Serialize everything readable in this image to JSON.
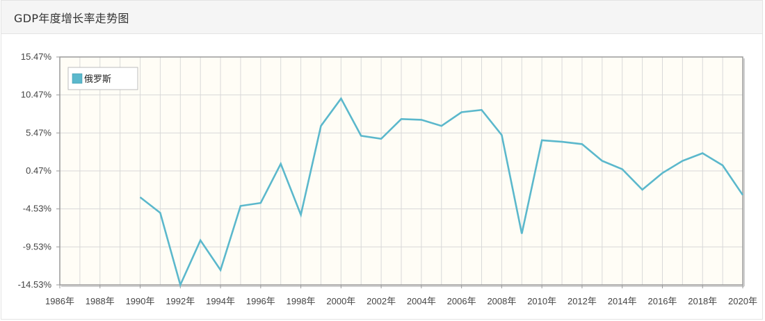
{
  "header": {
    "title": "GDP年度增长率走势图"
  },
  "colors": {
    "series": "#5bb8cc",
    "plot_bg": "#fffdf6",
    "grid": "#d8d8d8",
    "frame": "#9a9a9a"
  },
  "chart_data": {
    "type": "line",
    "title": "GDP年度增长率走势图",
    "xlabel": "",
    "ylabel": "",
    "x_tick_labels": [
      "1986年",
      "1988年",
      "1990年",
      "1992年",
      "1994年",
      "1996年",
      "1998年",
      "2000年",
      "2002年",
      "2004年",
      "2006年",
      "2008年",
      "2010年",
      "2012年",
      "2014年",
      "2016年",
      "2018年",
      "2020年"
    ],
    "y_tick_labels": [
      "15.47%",
      "10.47%",
      "5.47%",
      "0.47%",
      "-4.53%",
      "-9.53%",
      "-14.53%"
    ],
    "xlim": [
      1986,
      2020
    ],
    "ylim": [
      -14.53,
      15.47
    ],
    "grid": true,
    "legend": "top-left",
    "series": [
      {
        "name": "俄罗斯",
        "x": [
          1990,
          1991,
          1992,
          1993,
          1994,
          1995,
          1996,
          1997,
          1998,
          1999,
          2000,
          2001,
          2002,
          2003,
          2004,
          2005,
          2006,
          2007,
          2008,
          2009,
          2010,
          2011,
          2012,
          2013,
          2014,
          2015,
          2016,
          2017,
          2018,
          2019,
          2020
        ],
        "values": [
          -3.0,
          -5.05,
          -14.53,
          -8.67,
          -12.57,
          -4.14,
          -3.75,
          1.4,
          -5.3,
          6.4,
          10.0,
          5.1,
          4.7,
          7.3,
          7.2,
          6.4,
          8.2,
          8.5,
          5.2,
          -7.8,
          4.5,
          4.3,
          4.0,
          1.8,
          0.7,
          -2.0,
          0.2,
          1.8,
          2.8,
          1.2,
          -2.7
        ]
      }
    ]
  }
}
